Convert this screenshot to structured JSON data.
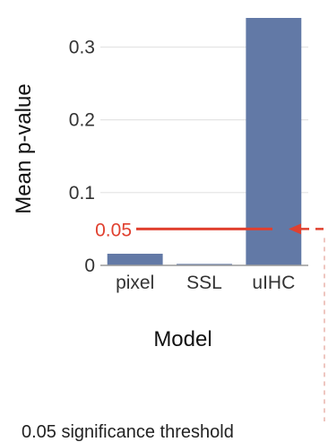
{
  "chart_data": {
    "type": "bar",
    "categories": [
      "pixel",
      "SSL",
      "uIHC"
    ],
    "values": [
      0.016,
      0.002,
      0.34
    ],
    "xlabel": "Model",
    "ylabel": "Mean p-value",
    "ylim": [
      0,
      0.34
    ],
    "yticks": [
      0,
      0.1,
      0.2,
      0.3
    ],
    "ytick_labels": [
      "0",
      "0.1",
      "0.2",
      "0.3"
    ],
    "grid": true,
    "threshold": {
      "value": 0.05,
      "label": "0.05",
      "caption": "0.05 significance threshold"
    },
    "colors": {
      "bar": "#6279a6",
      "threshold": "#e0402f",
      "grid": "#e4e4e4",
      "axis": "#9a9a9a"
    }
  }
}
